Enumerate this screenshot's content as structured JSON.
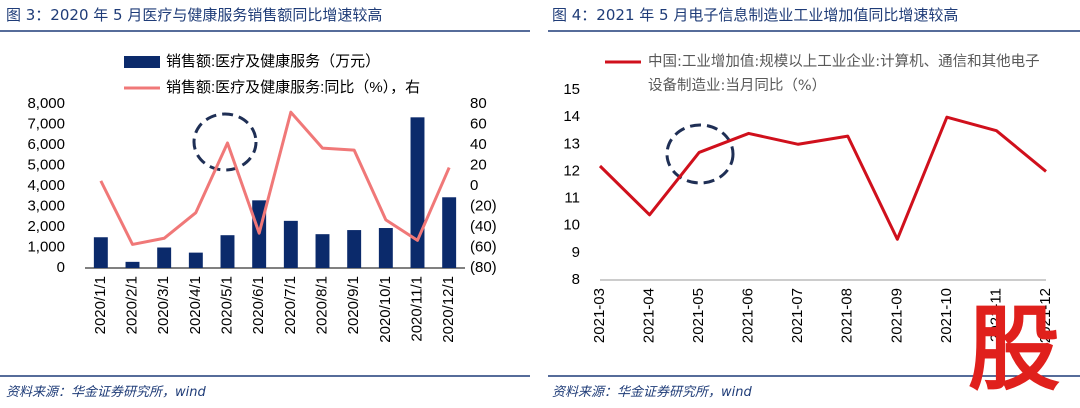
{
  "chart_data": [
    {
      "type": "bar",
      "title": "图 3：2020 年 5 月医疗与健康服务销售额同比增速较高",
      "source": "资料来源：华金证券研究所，wind",
      "categories": [
        "2020/1/1",
        "2020/2/1",
        "2020/3/1",
        "2020/4/1",
        "2020/5/1",
        "2020/6/1",
        "2020/7/1",
        "2020/8/1",
        "2020/9/1",
        "2020/10/1",
        "2020/11/1",
        "2020/12/1"
      ],
      "series": [
        {
          "name": "销售额:医疗及健康服务（万元）",
          "color": "#0b2a6b",
          "type": "bar",
          "values": [
            1500,
            300,
            1000,
            750,
            1600,
            3300,
            2300,
            1650,
            1850,
            1950,
            7350,
            3450
          ]
        },
        {
          "name": "销售额:医疗及健康服务:同比（%），右",
          "color": "#f07878",
          "type": "line",
          "axis": "y2",
          "values": [
            5,
            -57,
            -51,
            -26,
            42,
            -46,
            72,
            37,
            35,
            -33,
            -53,
            18
          ]
        }
      ],
      "ylim": [
        0,
        8000
      ],
      "yticks": [
        0,
        {
          "value": 1000,
          "label": "1,000"
        },
        {
          "value": 2000,
          "label": "2,000"
        },
        {
          "value": 3000,
          "label": "3,000"
        },
        {
          "value": 4000,
          "label": "4,000"
        },
        {
          "value": 5000,
          "label": "5,000"
        },
        {
          "value": 6000,
          "label": "6,000"
        },
        {
          "value": 7000,
          "label": "7,000"
        },
        {
          "value": 8000,
          "label": "8,000"
        }
      ],
      "y2lim": [
        -80,
        80
      ],
      "y2ticks": [
        {
          "value": -80,
          "label": "(80)"
        },
        {
          "value": -60,
          "label": "(60)"
        },
        {
          "value": -40,
          "label": "(40)"
        },
        {
          "value": -20,
          "label": "(20)"
        },
        0,
        20,
        40,
        60,
        80
      ]
    },
    {
      "type": "line",
      "title": "图 4：2021 年 5 月电子信息制造业工业增加值同比增速较高",
      "source": "资料来源：华金证券研究所，wind",
      "categories": [
        "2021-03",
        "2021-04",
        "2021-05",
        "2021-06",
        "2021-07",
        "2021-08",
        "2021-09",
        "2021-10",
        "2021-11",
        "2021-12"
      ],
      "series": [
        {
          "name": "中国:工业增加值:规模以上工业企业:计算机、通信和其他电子设备制造业:当月同比（%）",
          "color": "#d0101c",
          "values": [
            12.2,
            10.4,
            12.7,
            13.4,
            13.0,
            13.3,
            9.5,
            14.0,
            13.5,
            12.0
          ]
        }
      ],
      "ylim": [
        8,
        15
      ],
      "yticks": [
        8,
        9,
        10,
        11,
        12,
        13,
        14,
        15
      ]
    }
  ],
  "watermark": "股"
}
